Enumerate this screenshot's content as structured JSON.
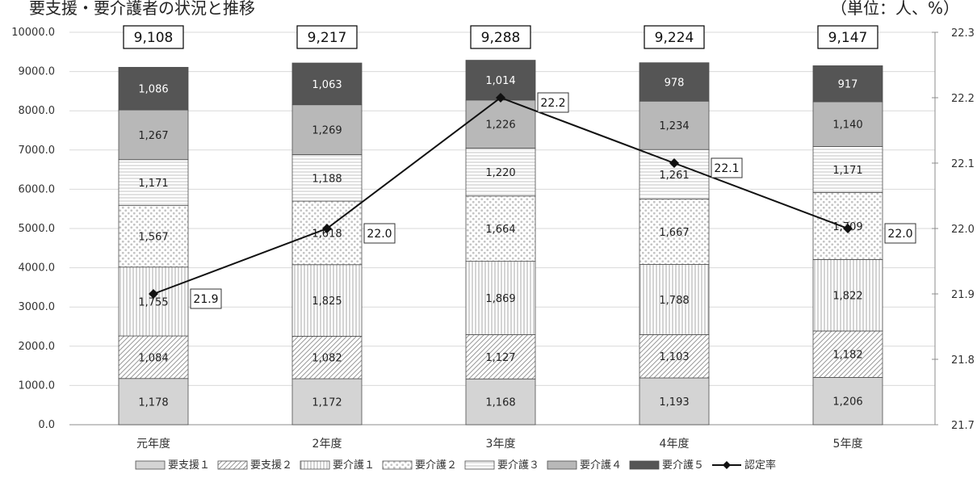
{
  "header": {
    "title": "要支援・要介護者の状況と推移",
    "unit": "（単位：人、%）"
  },
  "chart_data": {
    "type": "bar",
    "stacked": true,
    "categories": [
      "元年度",
      "2年度",
      "3年度",
      "4年度",
      "5年度"
    ],
    "y_left": {
      "min": 0,
      "max": 10000,
      "step": 1000,
      "tick_labels": [
        "0.0",
        "1000.0",
        "2000.0",
        "3000.0",
        "4000.0",
        "5000.0",
        "6000.0",
        "7000.0",
        "8000.0",
        "9000.0",
        "10000.0"
      ]
    },
    "y_right": {
      "min": 21.7,
      "max": 22.3,
      "step": 0.1,
      "tick_labels": [
        "21.7",
        "21.8",
        "21.9",
        "22.0",
        "22.1",
        "22.2",
        "22.3"
      ]
    },
    "series": [
      {
        "name": "要支援１",
        "values": [
          1178,
          1172,
          1168,
          1193,
          1206
        ],
        "labels": [
          "1,178",
          "1,172",
          "1,168",
          "1,193",
          "1,206"
        ],
        "fill": "#d4d4d4",
        "pattern": "solid",
        "label_color": "#222222"
      },
      {
        "name": "要支援２",
        "values": [
          1084,
          1082,
          1127,
          1103,
          1182
        ],
        "labels": [
          "1,084",
          "1,082",
          "1,127",
          "1,103",
          "1,182"
        ],
        "fill": "#ffffff",
        "pattern": "diag",
        "label_color": "#222222"
      },
      {
        "name": "要介護１",
        "values": [
          1755,
          1825,
          1869,
          1788,
          1822
        ],
        "labels": [
          "1,755",
          "1,825",
          "1,869",
          "1,788",
          "1,822"
        ],
        "fill": "#ffffff",
        "pattern": "vert",
        "label_color": "#222222"
      },
      {
        "name": "要介護２",
        "values": [
          1567,
          1618,
          1664,
          1667,
          1709
        ],
        "labels": [
          "1,567",
          "1,618",
          "1,664",
          "1,667",
          "1,709"
        ],
        "fill": "#ffffff",
        "pattern": "dots",
        "label_color": "#222222"
      },
      {
        "name": "要介護３",
        "values": [
          1171,
          1188,
          1220,
          1261,
          1171
        ],
        "labels": [
          "1,171",
          "1,188",
          "1,220",
          "1,261",
          "1,171"
        ],
        "fill": "#ffffff",
        "pattern": "horiz",
        "label_color": "#222222"
      },
      {
        "name": "要介護４",
        "values": [
          1267,
          1269,
          1226,
          1234,
          1140
        ],
        "labels": [
          "1,267",
          "1,269",
          "1,226",
          "1,234",
          "1,140"
        ],
        "fill": "#b8b8b8",
        "pattern": "solid",
        "label_color": "#222222"
      },
      {
        "name": "要介護５",
        "values": [
          1086,
          1063,
          1014,
          978,
          917
        ],
        "labels": [
          "1,086",
          "1,063",
          "1,014",
          "978",
          "917"
        ],
        "fill": "#555555",
        "pattern": "solid",
        "label_color": "#ffffff"
      }
    ],
    "totals": [
      "9,108",
      "9,217",
      "9,288",
      "9,224",
      "9,147"
    ],
    "rate": {
      "name": "認定率",
      "values": [
        21.9,
        22.0,
        22.2,
        22.1,
        22.0
      ],
      "labels": [
        "21.9",
        "22.0",
        "22.2",
        "22.1",
        "22.0"
      ],
      "color": "#111111"
    },
    "grid": true,
    "legend_position": "bottom"
  }
}
